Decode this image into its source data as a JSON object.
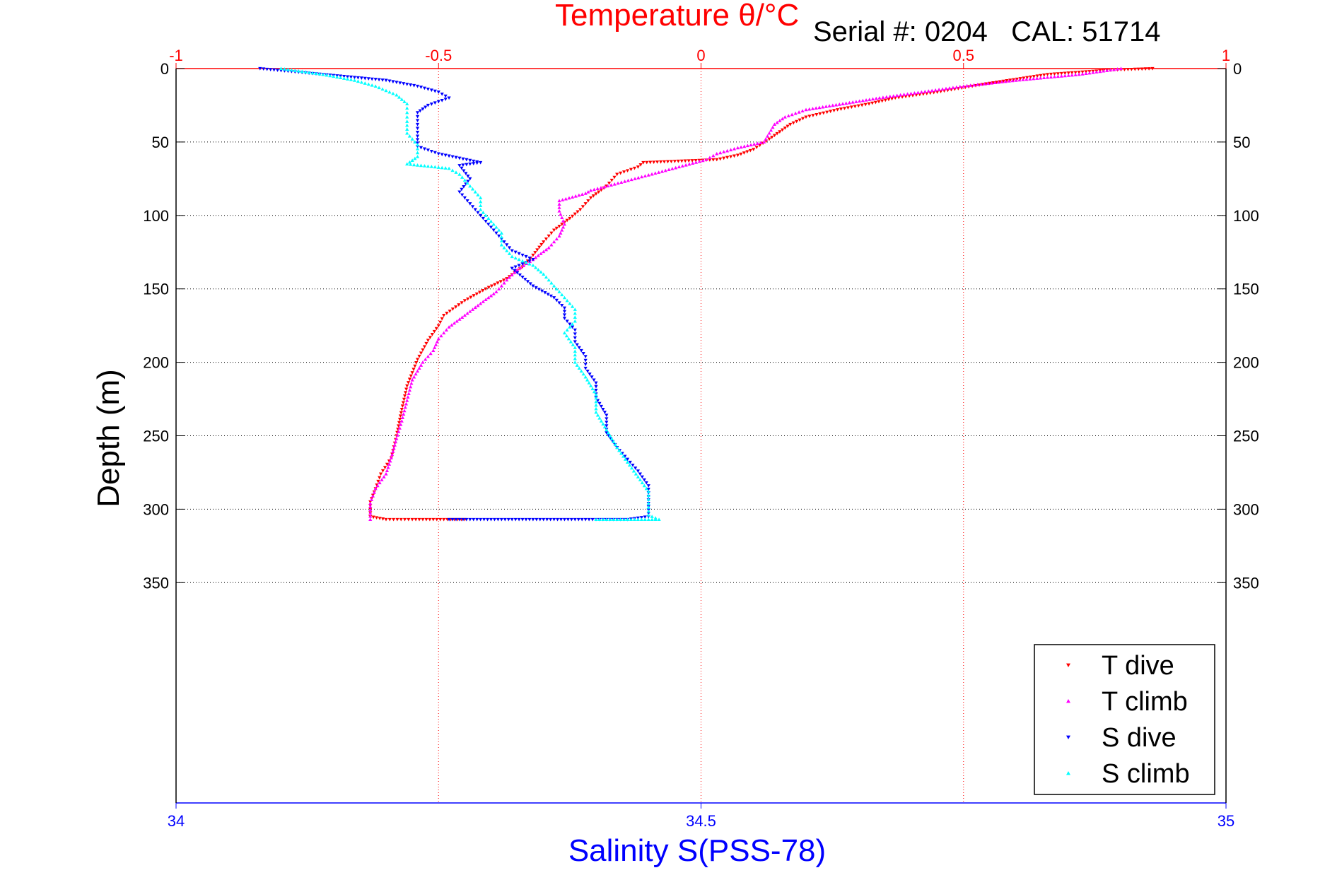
{
  "chart_data": {
    "type": "scatter",
    "title": "Temperature θ/°C",
    "subtitle": "Serial #: 0204   CAL: 51714",
    "ylabel": "Depth (m)",
    "xlabel_bottom": "Salinity S(PSS-78)",
    "y_axis": {
      "range": [
        0,
        500
      ],
      "inverted": true,
      "ticks": [
        0,
        50,
        100,
        150,
        200,
        250,
        300,
        350
      ]
    },
    "x_top": {
      "range": [
        -1,
        1
      ],
      "ticks": [
        "-1",
        "-0.5",
        "0",
        "0.5",
        "1"
      ],
      "color": "#ff0000"
    },
    "x_bottom": {
      "range": [
        34,
        35
      ],
      "ticks": [
        "34",
        "34.5",
        "35"
      ],
      "color": "#0000ff"
    },
    "grid": true,
    "legend_position": "bottom-right",
    "series": [
      {
        "name": "T dive",
        "axis": "top",
        "color": "#ff0000",
        "marker": "triangle-down",
        "points": [
          [
            0.86,
            0
          ],
          [
            0.78,
            1
          ],
          [
            0.66,
            4
          ],
          [
            0.55,
            10
          ],
          [
            0.45,
            16
          ],
          [
            0.37,
            20
          ],
          [
            0.32,
            24
          ],
          [
            0.26,
            28
          ],
          [
            0.2,
            33
          ],
          [
            0.17,
            38
          ],
          [
            0.15,
            43
          ],
          [
            0.13,
            48
          ],
          [
            0.1,
            55
          ],
          [
            0.07,
            59
          ],
          [
            0.03,
            62
          ],
          [
            -0.11,
            64
          ],
          [
            -0.12,
            67
          ],
          [
            -0.16,
            72
          ],
          [
            -0.18,
            80
          ],
          [
            -0.21,
            88
          ],
          [
            -0.23,
            96
          ],
          [
            -0.25,
            102
          ],
          [
            -0.28,
            110
          ],
          [
            -0.3,
            118
          ],
          [
            -0.32,
            127
          ],
          [
            -0.34,
            135
          ],
          [
            -0.37,
            143
          ],
          [
            -0.41,
            150
          ],
          [
            -0.45,
            158
          ],
          [
            -0.49,
            168
          ],
          [
            -0.5,
            175
          ],
          [
            -0.52,
            185
          ],
          [
            -0.54,
            198
          ],
          [
            -0.55,
            207
          ],
          [
            -0.56,
            216
          ],
          [
            -0.57,
            232
          ],
          [
            -0.58,
            250
          ],
          [
            -0.59,
            265
          ],
          [
            -0.61,
            276
          ],
          [
            -0.62,
            286
          ],
          [
            -0.63,
            295
          ],
          [
            -0.63,
            305
          ],
          [
            -0.6,
            307
          ],
          [
            -0.55,
            307
          ],
          [
            -0.45,
            307
          ]
        ]
      },
      {
        "name": "T climb",
        "axis": "top",
        "color": "#ff00ff",
        "marker": "triangle-up",
        "points": [
          [
            -0.63,
            307
          ],
          [
            -0.63,
            296
          ],
          [
            -0.62,
            286
          ],
          [
            -0.6,
            276
          ],
          [
            -0.59,
            265
          ],
          [
            -0.58,
            252
          ],
          [
            -0.57,
            240
          ],
          [
            -0.56,
            226
          ],
          [
            -0.55,
            212
          ],
          [
            -0.53,
            200
          ],
          [
            -0.51,
            192
          ],
          [
            -0.5,
            184
          ],
          [
            -0.48,
            176
          ],
          [
            -0.45,
            168
          ],
          [
            -0.42,
            160
          ],
          [
            -0.39,
            152
          ],
          [
            -0.37,
            144
          ],
          [
            -0.35,
            137
          ],
          [
            -0.32,
            130
          ],
          [
            -0.29,
            122
          ],
          [
            -0.27,
            114
          ],
          [
            -0.26,
            106
          ],
          [
            -0.27,
            97
          ],
          [
            -0.27,
            90
          ],
          [
            -0.22,
            85
          ],
          [
            -0.21,
            83
          ],
          [
            0.01,
            62
          ],
          [
            0.03,
            58
          ],
          [
            0.07,
            54
          ],
          [
            0.12,
            50
          ],
          [
            0.13,
            44
          ],
          [
            0.14,
            38
          ],
          [
            0.16,
            33
          ],
          [
            0.2,
            28
          ],
          [
            0.27,
            24
          ],
          [
            0.34,
            20
          ],
          [
            0.42,
            16
          ],
          [
            0.5,
            12
          ],
          [
            0.6,
            8
          ],
          [
            0.72,
            4
          ],
          [
            0.78,
            1
          ],
          [
            0.8,
            0
          ]
        ]
      },
      {
        "name": "S dive",
        "axis": "bottom",
        "color": "#0000ff",
        "marker": "triangle-down",
        "points": [
          [
            34.08,
            0
          ],
          [
            34.11,
            2
          ],
          [
            34.14,
            4
          ],
          [
            34.17,
            6
          ],
          [
            34.2,
            8
          ],
          [
            34.23,
            12
          ],
          [
            34.25,
            16
          ],
          [
            34.26,
            20
          ],
          [
            34.24,
            25
          ],
          [
            34.23,
            30
          ],
          [
            34.23,
            38
          ],
          [
            34.23,
            46
          ],
          [
            34.23,
            53
          ],
          [
            34.25,
            58
          ],
          [
            34.29,
            64
          ],
          [
            34.27,
            66
          ],
          [
            34.28,
            75
          ],
          [
            34.27,
            84
          ],
          [
            34.28,
            92
          ],
          [
            34.29,
            100
          ],
          [
            34.3,
            108
          ],
          [
            34.31,
            116
          ],
          [
            34.32,
            124
          ],
          [
            34.34,
            130
          ],
          [
            34.32,
            136
          ],
          [
            34.33,
            142
          ],
          [
            34.34,
            148
          ],
          [
            34.36,
            156
          ],
          [
            34.37,
            163
          ],
          [
            34.37,
            170
          ],
          [
            34.38,
            178
          ],
          [
            34.38,
            186
          ],
          [
            34.39,
            196
          ],
          [
            34.39,
            204
          ],
          [
            34.4,
            214
          ],
          [
            34.4,
            224
          ],
          [
            34.41,
            236
          ],
          [
            34.41,
            248
          ],
          [
            34.42,
            258
          ],
          [
            34.43,
            266
          ],
          [
            34.44,
            274
          ],
          [
            34.45,
            284
          ],
          [
            34.45,
            296
          ],
          [
            34.45,
            305
          ],
          [
            34.43,
            307
          ],
          [
            34.37,
            307
          ],
          [
            34.3,
            307
          ],
          [
            34.26,
            307
          ]
        ]
      },
      {
        "name": "S climb",
        "axis": "bottom",
        "color": "#00ffff",
        "marker": "triangle-up",
        "points": [
          [
            34.1,
            0
          ],
          [
            34.14,
            4
          ],
          [
            34.17,
            8
          ],
          [
            34.19,
            12
          ],
          [
            34.21,
            18
          ],
          [
            34.22,
            24
          ],
          [
            34.22,
            30
          ],
          [
            34.22,
            36
          ],
          [
            34.22,
            44
          ],
          [
            34.23,
            52
          ],
          [
            34.23,
            60
          ],
          [
            34.22,
            65
          ],
          [
            34.26,
            68
          ],
          [
            34.27,
            72
          ],
          [
            34.28,
            80
          ],
          [
            34.29,
            88
          ],
          [
            34.29,
            96
          ],
          [
            34.3,
            104
          ],
          [
            34.31,
            112
          ],
          [
            34.31,
            120
          ],
          [
            34.32,
            128
          ],
          [
            34.34,
            134
          ],
          [
            34.35,
            140
          ],
          [
            34.36,
            148
          ],
          [
            34.37,
            156
          ],
          [
            34.38,
            164
          ],
          [
            34.38,
            172
          ],
          [
            34.37,
            180
          ],
          [
            34.38,
            190
          ],
          [
            34.38,
            200
          ],
          [
            34.39,
            210
          ],
          [
            34.4,
            222
          ],
          [
            34.4,
            234
          ],
          [
            34.41,
            246
          ],
          [
            34.42,
            258
          ],
          [
            34.43,
            268
          ],
          [
            34.44,
            278
          ],
          [
            34.45,
            288
          ],
          [
            34.45,
            296
          ],
          [
            34.45,
            304
          ],
          [
            34.46,
            307
          ],
          [
            34.41,
            307
          ],
          [
            34.4,
            307
          ]
        ]
      }
    ]
  }
}
